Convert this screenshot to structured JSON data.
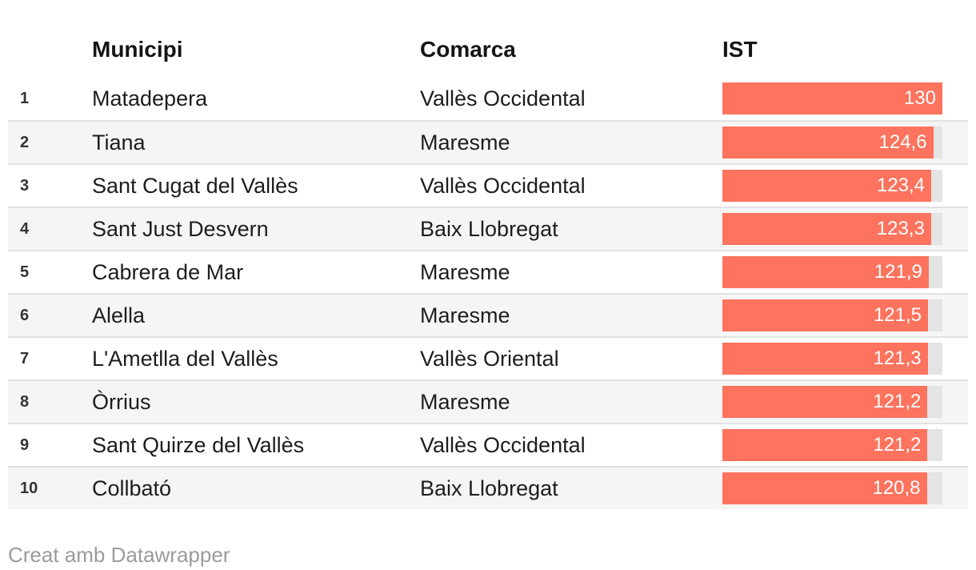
{
  "colors": {
    "bar": "#fd735e",
    "bar_track": "#e4e4e4",
    "row_stripe": "#f5f5f5",
    "separator": "#e2e2e2",
    "header_text": "#151515",
    "body_text": "#1d1d1d",
    "rank_text": "#333333",
    "bar_label": "#ffffff",
    "footer_text": "#9b9b9b"
  },
  "table": {
    "columns": [
      {
        "key": "rank",
        "label": ""
      },
      {
        "key": "municipi",
        "label": "Municipi"
      },
      {
        "key": "comarca",
        "label": "Comarca"
      },
      {
        "key": "ist",
        "label": "IST"
      }
    ],
    "max_value": 130,
    "rows": [
      {
        "rank": "1",
        "municipi": "Matadepera",
        "comarca": "Vallès Occidental",
        "ist_display": "130",
        "ist_value": 130
      },
      {
        "rank": "2",
        "municipi": "Tiana",
        "comarca": "Maresme",
        "ist_display": "124,6",
        "ist_value": 124.6
      },
      {
        "rank": "3",
        "municipi": "Sant Cugat del Vallès",
        "comarca": "Vallès Occidental",
        "ist_display": "123,4",
        "ist_value": 123.4
      },
      {
        "rank": "4",
        "municipi": "Sant Just Desvern",
        "comarca": "Baix Llobregat",
        "ist_display": "123,3",
        "ist_value": 123.3
      },
      {
        "rank": "5",
        "municipi": "Cabrera de Mar",
        "comarca": "Maresme",
        "ist_display": "121,9",
        "ist_value": 121.9
      },
      {
        "rank": "6",
        "municipi": "Alella",
        "comarca": "Maresme",
        "ist_display": "121,5",
        "ist_value": 121.5
      },
      {
        "rank": "7",
        "municipi": "L'Ametlla del Vallès",
        "comarca": "Vallès Oriental",
        "ist_display": "121,3",
        "ist_value": 121.3
      },
      {
        "rank": "8",
        "municipi": "Òrrius",
        "comarca": "Maresme",
        "ist_display": "121,2",
        "ist_value": 121.2
      },
      {
        "rank": "9",
        "municipi": "Sant Quirze del Vallès",
        "comarca": "Vallès Occidental",
        "ist_display": "121,2",
        "ist_value": 121.2
      },
      {
        "rank": "10",
        "municipi": "Collbató",
        "comarca": "Baix Llobregat",
        "ist_display": "120,8",
        "ist_value": 120.8
      }
    ]
  },
  "footer": {
    "credit": "Creat amb Datawrapper"
  },
  "chart_data": {
    "type": "table",
    "title": "",
    "columns": [
      "Rank",
      "Municipi",
      "Comarca",
      "IST"
    ],
    "bar_column": "IST",
    "bar_range": [
      0,
      130
    ],
    "bar_color": "#fd735e",
    "rows": [
      [
        1,
        "Matadepera",
        "Vallès Occidental",
        130
      ],
      [
        2,
        "Tiana",
        "Maresme",
        124.6
      ],
      [
        3,
        "Sant Cugat del Vallès",
        "Vallès Occidental",
        123.4
      ],
      [
        4,
        "Sant Just Desvern",
        "Baix Llobregat",
        123.3
      ],
      [
        5,
        "Cabrera de Mar",
        "Maresme",
        121.9
      ],
      [
        6,
        "Alella",
        "Maresme",
        121.5
      ],
      [
        7,
        "L'Ametlla del Vallès",
        "Vallès Oriental",
        121.3
      ],
      [
        8,
        "Òrrius",
        "Maresme",
        121.2
      ],
      [
        9,
        "Sant Quirze del Vallès",
        "Vallès Occidental",
        121.2
      ],
      [
        10,
        "Collbató",
        "Baix Llobregat",
        120.8
      ]
    ],
    "footer": "Creat amb Datawrapper"
  }
}
